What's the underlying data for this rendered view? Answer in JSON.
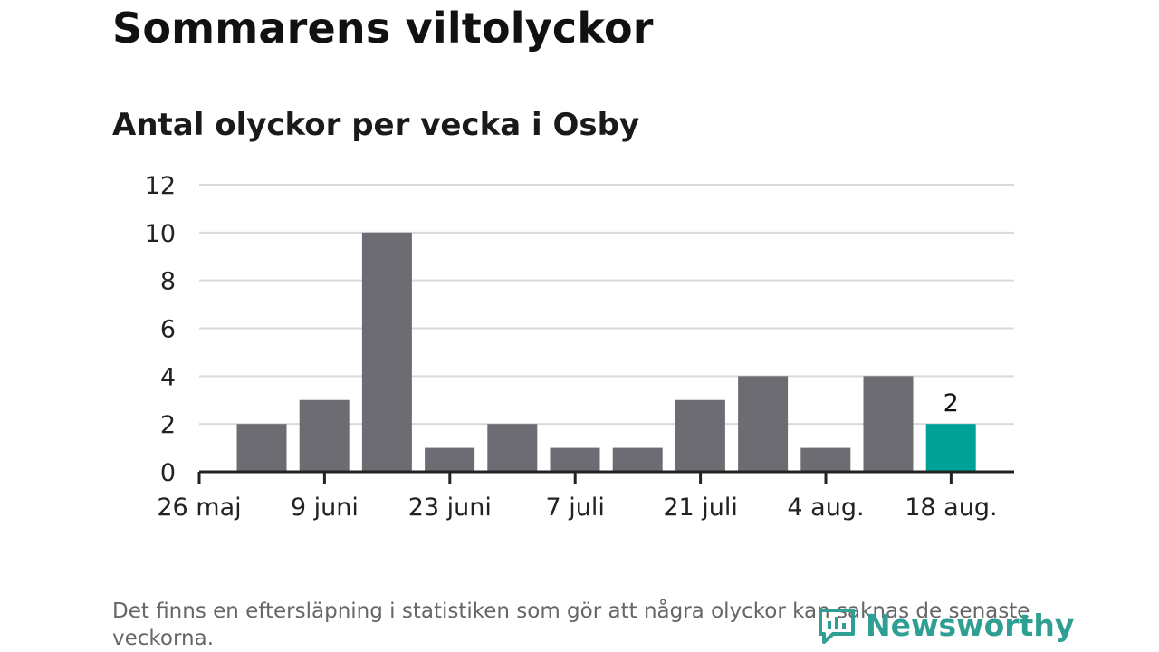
{
  "header": {
    "title": "Sommarens viltolyckor",
    "subtitle": "Antal olyckor per vecka i Osby"
  },
  "footer": {
    "note": "Det finns en eftersläpning i statistiken som gör att några olyckor kan saknas de senaste veckorna.",
    "logo_text": "Newsworthy"
  },
  "colors": {
    "bar": "#6d6c72",
    "highlight": "#00a298",
    "grid": "#d9d9d9",
    "axis": "#222222",
    "logo": "#2e9f92"
  },
  "chart_data": {
    "type": "bar",
    "title": "Antal olyckor per vecka i Osby",
    "xlabel": "",
    "ylabel": "",
    "ylim": [
      0,
      12
    ],
    "yticks": [
      0,
      2,
      4,
      6,
      8,
      10,
      12
    ],
    "xtick_labels": [
      "26 maj",
      "9 juni",
      "23 juni",
      "7 juli",
      "21 juli",
      "4 aug.",
      "18 aug."
    ],
    "values": [
      2,
      3,
      10,
      1,
      2,
      1,
      1,
      3,
      4,
      1,
      4,
      2
    ],
    "highlight_index": 11,
    "highlight_label": "2",
    "grid": true,
    "legend": "none"
  }
}
